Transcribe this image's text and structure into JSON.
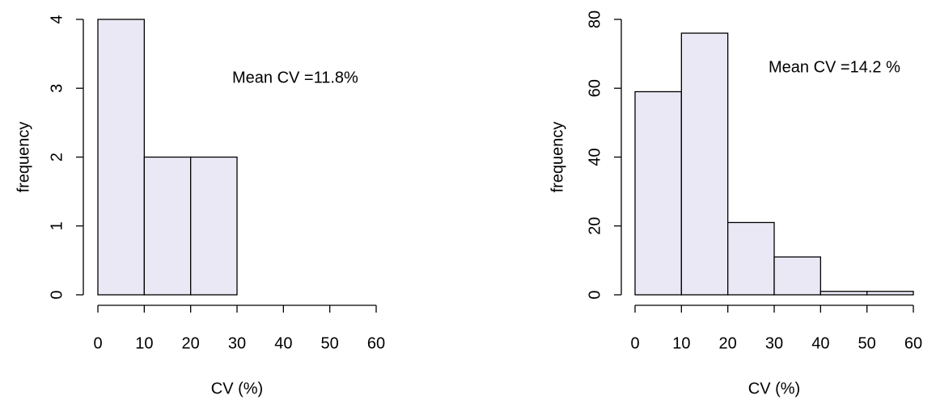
{
  "chart_data": [
    {
      "type": "histogram",
      "bins": [
        0,
        10,
        20,
        30
      ],
      "values": [
        4,
        2,
        2
      ],
      "color": "#ebe8f5",
      "xlim": [
        0,
        60
      ],
      "xticks": [
        0,
        10,
        20,
        30,
        40,
        50,
        60
      ],
      "ylim": [
        0,
        4
      ],
      "yticks": [
        0,
        1,
        2,
        3,
        4
      ],
      "xlabel": "CV (%)",
      "ylabel": "frequency",
      "annotation": "Mean CV =11.8%"
    },
    {
      "type": "histogram",
      "bins": [
        0,
        10,
        20,
        30,
        40,
        50,
        60
      ],
      "values": [
        59,
        76,
        21,
        11,
        1,
        1
      ],
      "color": "#ebe8f5",
      "xlim": [
        0,
        60
      ],
      "xticks": [
        0,
        10,
        20,
        30,
        40,
        50,
        60
      ],
      "ylim": [
        0,
        80
      ],
      "yticks": [
        0,
        20,
        40,
        60,
        80
      ],
      "xlabel": "CV (%)",
      "ylabel": "frequency",
      "annotation": "Mean CV =14.2 %"
    }
  ]
}
